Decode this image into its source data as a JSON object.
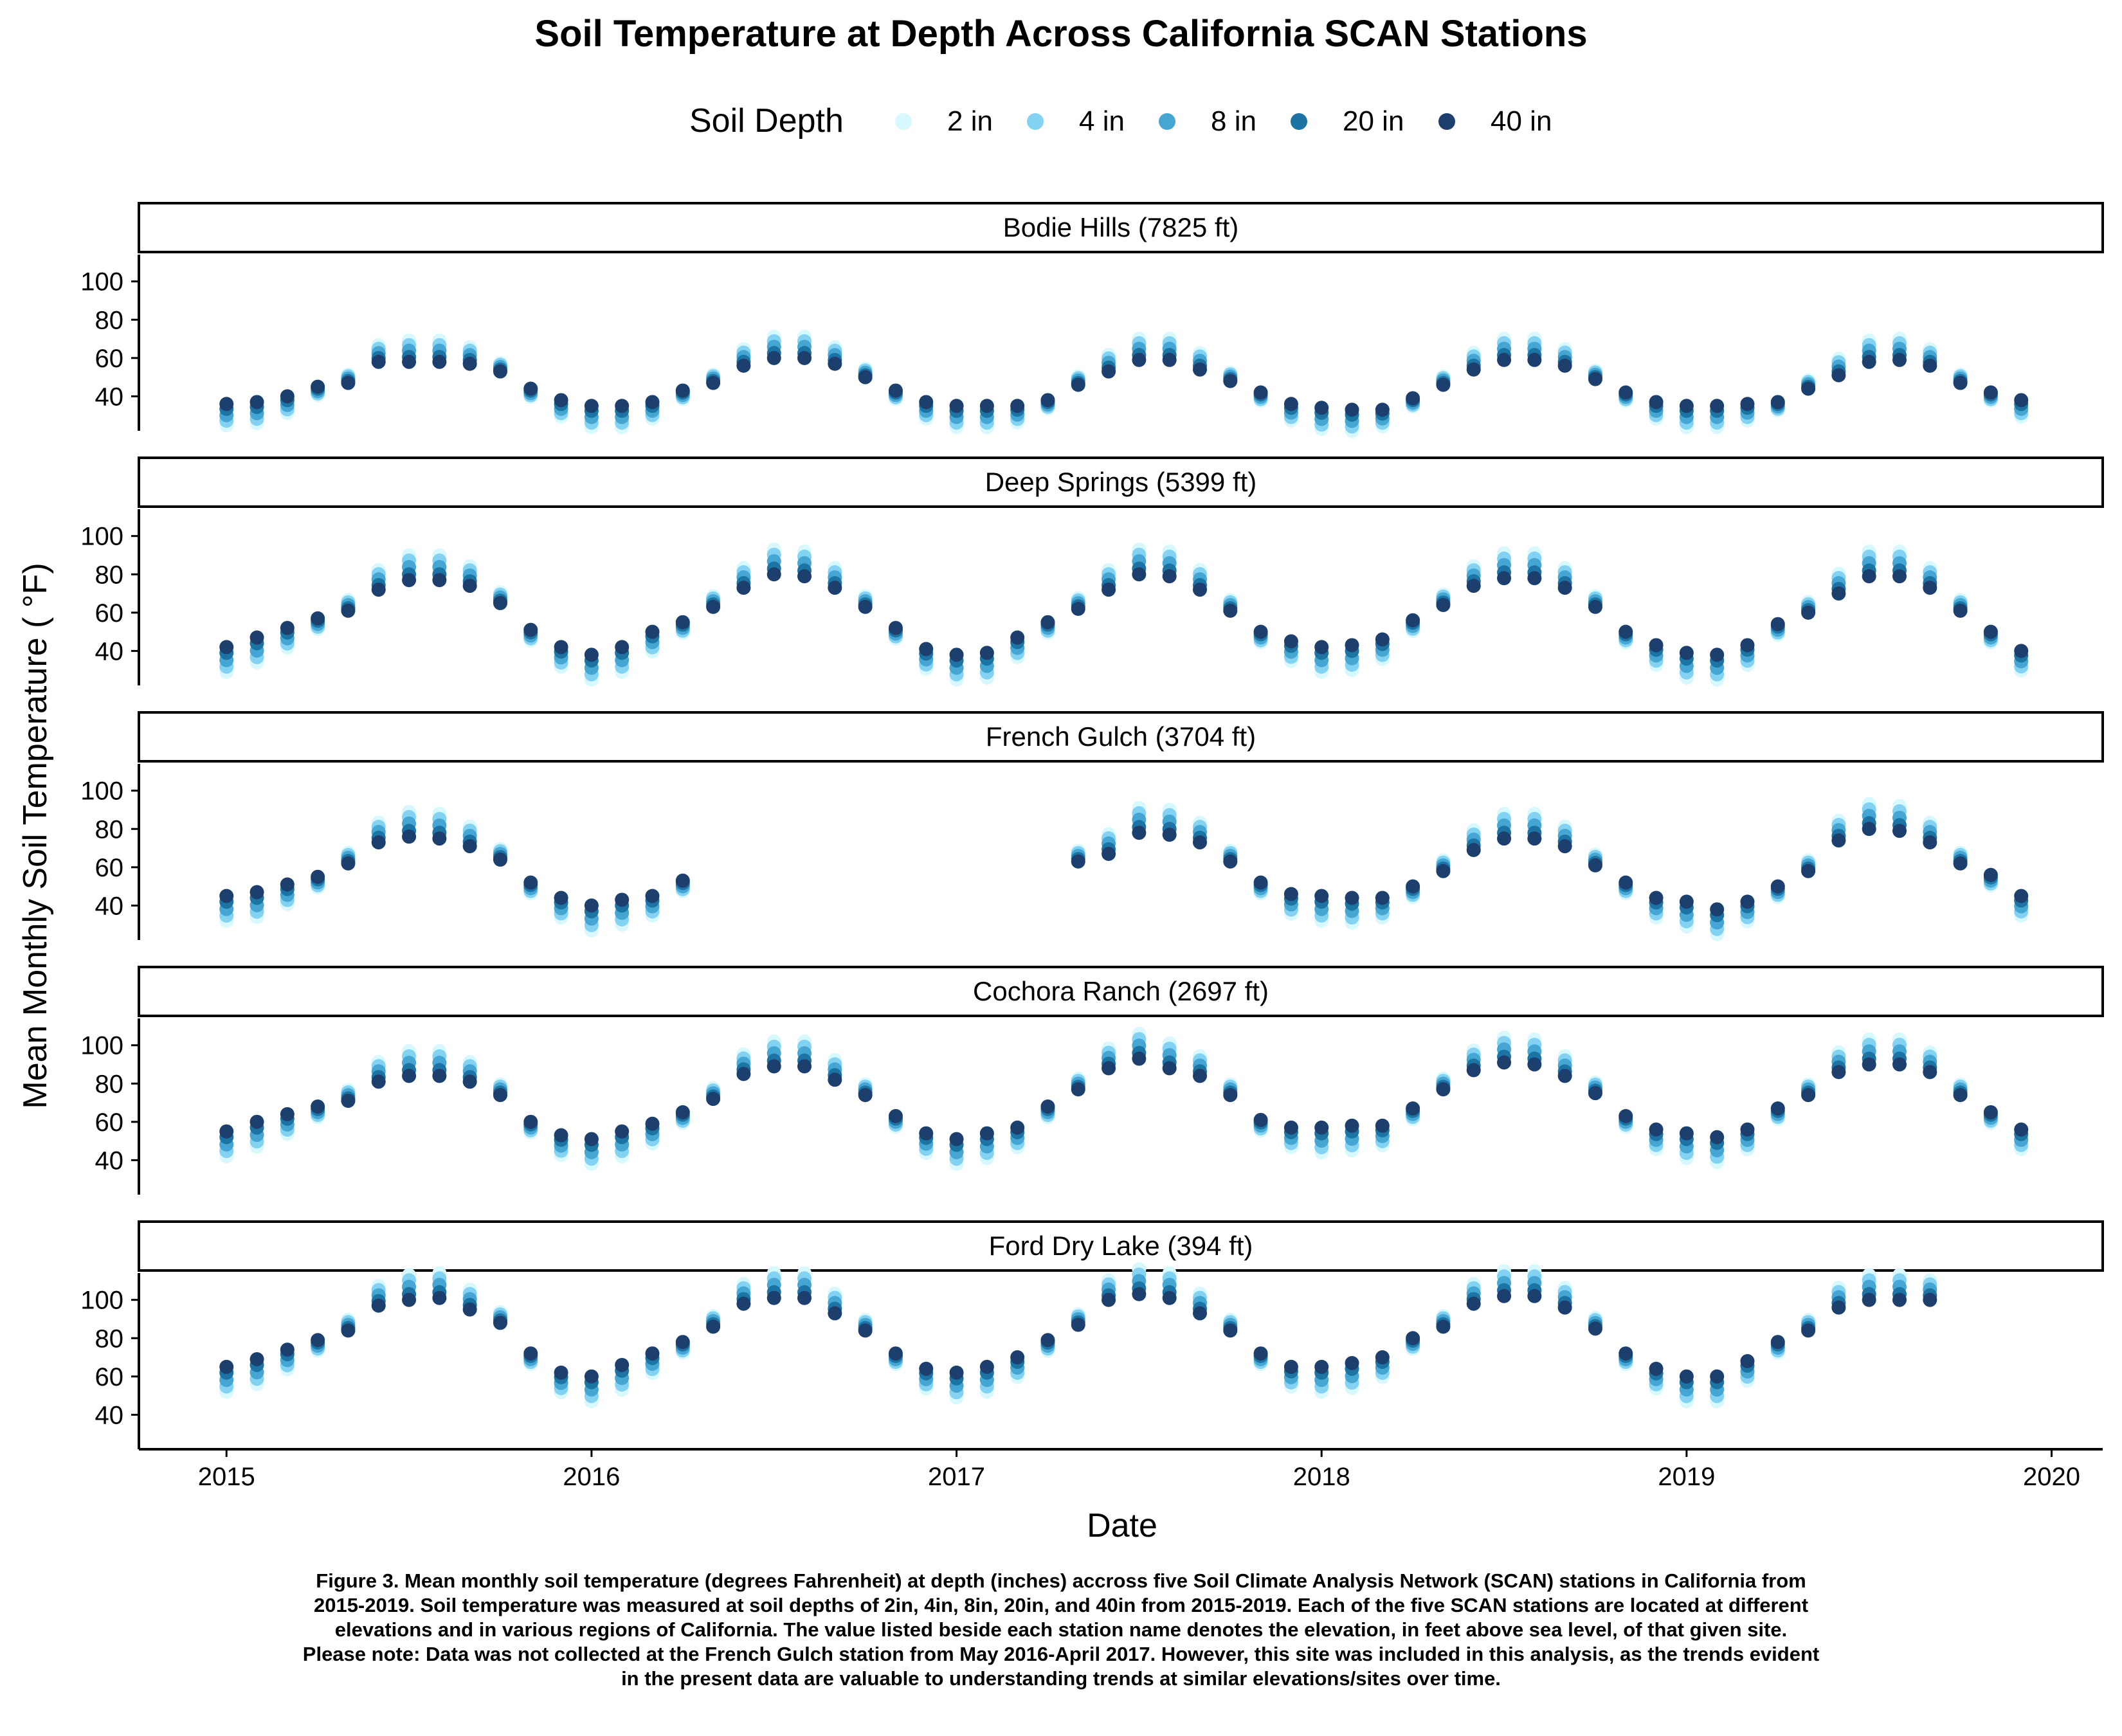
{
  "chart_data": {
    "type": "scatter",
    "title": "Soil Temperature at Depth Across California SCAN Stations",
    "xlabel": "Date",
    "ylabel": "Mean Monthly Soil Temperature ( °F)",
    "legend": {
      "title": "Soil Depth",
      "position": "top",
      "entries": [
        {
          "label": "2 in",
          "color": "#d8f8ff"
        },
        {
          "label": "4 in",
          "color": "#84d2f2"
        },
        {
          "label": "8 in",
          "color": "#45a6d4"
        },
        {
          "label": "20 in",
          "color": "#1c74a4"
        },
        {
          "label": "40 in",
          "color": "#1c3f6e"
        }
      ]
    },
    "x_ticks": [
      "2015",
      "2016",
      "2017",
      "2018",
      "2019",
      "2020"
    ],
    "x_range": [
      2014.76,
      2020.14
    ],
    "y_ticks": [
      40,
      60,
      80,
      100
    ],
    "y_range": [
      22,
      114
    ],
    "grid": false,
    "panels": [
      {
        "label": "Bodie Hills (7825 ft)",
        "start_month": "2015-01",
        "month_values": [
          36,
          37,
          40,
          45,
          47,
          58,
          58,
          58,
          57,
          53,
          44,
          38,
          35,
          35,
          37,
          43,
          47,
          56,
          60,
          60,
          57,
          50,
          43,
          37,
          35,
          35,
          35,
          38,
          46,
          53,
          59,
          59,
          54,
          48,
          42,
          36,
          34,
          33,
          33,
          39,
          46,
          54,
          59,
          59,
          56,
          49,
          42,
          37,
          35,
          35,
          36,
          37,
          44,
          51,
          58,
          59,
          56,
          47,
          42,
          38
        ],
        "seasonal_spread": [
          2,
          12
        ]
      },
      {
        "label": "Deep Springs (5399 ft)",
        "start_month": "2015-01",
        "month_values": [
          42,
          47,
          52,
          57,
          61,
          72,
          77,
          77,
          74,
          65,
          51,
          42,
          38,
          42,
          50,
          55,
          63,
          73,
          80,
          79,
          73,
          63,
          52,
          41,
          38,
          39,
          47,
          55,
          62,
          72,
          80,
          79,
          72,
          61,
          50,
          45,
          42,
          43,
          46,
          56,
          64,
          74,
          78,
          78,
          73,
          63,
          50,
          43,
          39,
          38,
          43,
          54,
          60,
          70,
          79,
          79,
          73,
          61,
          50,
          40
        ],
        "seasonal_spread": [
          3,
          14
        ]
      },
      {
        "label": "French Gulch (3704 ft)",
        "start_month": "2015-01",
        "month_values": [
          45,
          47,
          51,
          55,
          62,
          73,
          76,
          75,
          71,
          64,
          52,
          44,
          40,
          43,
          45,
          53,
          null,
          null,
          null,
          null,
          null,
          null,
          null,
          null,
          null,
          null,
          null,
          null,
          63,
          67,
          78,
          77,
          73,
          63,
          52,
          46,
          45,
          44,
          44,
          50,
          58,
          69,
          75,
          75,
          71,
          61,
          52,
          44,
          42,
          38,
          42,
          50,
          58,
          74,
          80,
          79,
          73,
          62,
          56,
          45
        ],
        "seasonal_spread": [
          3,
          14
        ]
      },
      {
        "label": "Cochora Ranch (2697 ft)",
        "start_month": "2015-01",
        "month_values": [
          55,
          60,
          64,
          68,
          71,
          81,
          84,
          84,
          81,
          74,
          60,
          53,
          51,
          55,
          59,
          65,
          72,
          85,
          89,
          89,
          82,
          74,
          63,
          54,
          51,
          54,
          57,
          68,
          77,
          88,
          93,
          88,
          84,
          74,
          61,
          57,
          57,
          58,
          58,
          67,
          77,
          87,
          91,
          90,
          84,
          75,
          63,
          56,
          54,
          52,
          56,
          67,
          74,
          86,
          90,
          90,
          86,
          74,
          65,
          56
        ],
        "seasonal_spread": [
          3,
          14
        ]
      },
      {
        "label": "Ford Dry Lake (394 ft)",
        "start_month": "2015-01",
        "month_values": [
          65,
          69,
          74,
          79,
          84,
          97,
          100,
          101,
          95,
          88,
          72,
          62,
          60,
          66,
          72,
          78,
          86,
          98,
          101,
          101,
          93,
          84,
          72,
          64,
          62,
          65,
          70,
          79,
          87,
          100,
          103,
          101,
          93,
          84,
          72,
          65,
          65,
          67,
          70,
          80,
          86,
          98,
          102,
          102,
          96,
          85,
          72,
          64,
          60,
          60,
          68,
          78,
          84,
          96,
          100,
          100,
          100,
          null,
          null,
          null
        ],
        "seasonal_spread": [
          3,
          14
        ]
      }
    ]
  },
  "caption": {
    "lines": [
      "Figure 3. Mean monthly soil temperature (degrees Fahrenheit) at depth (inches) accross five Soil Climate Analysis Network (SCAN) stations in California from",
      "2015-2019. Soil temperature was measured at soil depths of 2in, 4in, 8in, 20in, and 40in from 2015-2019. Each of the five SCAN stations are located at different",
      "elevations and in various regions of California. The value listed beside each station name denotes the elevation, in feet above sea level, of that given site.",
      "Please note: Data was not collected at the French Gulch station from May 2016-April 2017. However, this site was included in this analysis, as the trends evident",
      "in the present data are valuable to understanding trends at similar elevations/sites over time."
    ]
  }
}
